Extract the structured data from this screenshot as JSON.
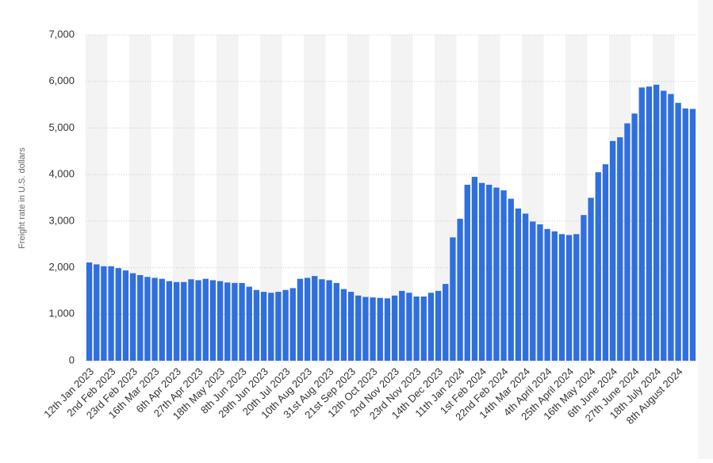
{
  "chart_data": {
    "type": "bar",
    "y_label": "Freight rate in U.S. dollars",
    "color": "#2f6fde",
    "categories": [
      "12th Jan 2023",
      null,
      null,
      "2nd Feb 2023",
      null,
      null,
      "23rd Feb 2023",
      null,
      null,
      "16th Mar 2023",
      null,
      null,
      "6th Apr 2023",
      null,
      null,
      "27th Apr 2023",
      null,
      null,
      "18th May 2023",
      null,
      null,
      "8th Jun 2023",
      null,
      null,
      "29th Jun 2023",
      null,
      null,
      "20th Jul 2023",
      null,
      null,
      "10th Aug 2023",
      null,
      null,
      "31st Aug 2023",
      null,
      null,
      "21st Sep 2023",
      null,
      null,
      "12th Oct 2023",
      null,
      null,
      "2nd Nov 2023",
      null,
      null,
      "23rd Nov 2023",
      null,
      null,
      "14th Dec 2023",
      null,
      null,
      "11th Jan 2024",
      null,
      null,
      "1st Feb 2024",
      null,
      null,
      "22nd Feb 2024",
      null,
      null,
      "14th Mar 2024",
      null,
      null,
      "4th April 2024",
      null,
      null,
      "25th April 2024",
      null,
      null,
      "16th May 2024",
      null,
      null,
      "6th June 2024",
      null,
      null,
      "27th June 2024",
      null,
      null,
      "18th July 2024",
      null,
      null,
      "8th August 2024",
      null,
      null
    ],
    "values": [
      2110,
      2070,
      2030,
      2030,
      1990,
      1940,
      1880,
      1840,
      1800,
      1780,
      1760,
      1710,
      1690,
      1690,
      1750,
      1730,
      1760,
      1730,
      1710,
      1680,
      1670,
      1670,
      1590,
      1520,
      1480,
      1460,
      1480,
      1520,
      1560,
      1760,
      1780,
      1820,
      1750,
      1730,
      1670,
      1540,
      1480,
      1400,
      1370,
      1360,
      1350,
      1340,
      1400,
      1500,
      1460,
      1380,
      1380,
      1460,
      1500,
      1650,
      2650,
      3050,
      3780,
      3950,
      3820,
      3780,
      3720,
      3660,
      3480,
      3270,
      3160,
      2990,
      2930,
      2830,
      2780,
      2720,
      2700,
      2720,
      3130,
      3500,
      4050,
      4220,
      4720,
      4800,
      5100,
      5310,
      5870,
      5890,
      5930,
      5800,
      5730,
      5540,
      5420,
      5410
    ],
    "ylim": [
      0,
      7000
    ],
    "yticks": [
      0,
      {
        "value": 1000,
        "label": "1,000"
      },
      {
        "value": 2000,
        "label": "2,000"
      },
      {
        "value": 3000,
        "label": "3,000"
      },
      {
        "value": 4000,
        "label": "4,000"
      },
      {
        "value": 5000,
        "label": "5,000"
      },
      {
        "value": 6000,
        "label": "6,000"
      },
      {
        "value": 7000,
        "label": "7,000"
      }
    ],
    "grid": true
  }
}
